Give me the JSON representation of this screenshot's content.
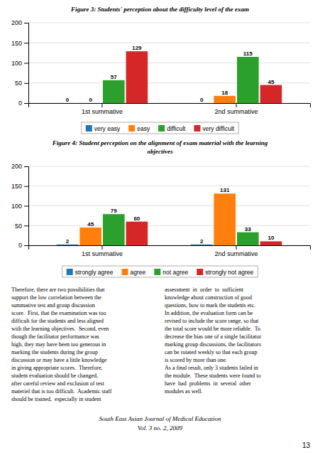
{
  "chart_data": [
    {
      "type": "bar",
      "title": "Figure 3: Students' perception about the difficulty level of the exam",
      "categories": [
        "1st summative",
        "2nd summative"
      ],
      "series": [
        {
          "name": "very easy",
          "values": [
            0,
            0
          ]
        },
        {
          "name": "easy",
          "values": [
            0,
            18
          ]
        },
        {
          "name": "difficult",
          "values": [
            57,
            115
          ]
        },
        {
          "name": "very difficult",
          "values": [
            129,
            45
          ]
        }
      ],
      "ylim": [
        0,
        200
      ],
      "yticks": [
        0,
        50,
        100,
        150,
        200
      ],
      "grid": true,
      "legend": "bottom",
      "data_labels": true
    },
    {
      "type": "bar",
      "title": "Figure 4: Student perception on the alignment of exam material with the learning\nobjectives",
      "categories": [
        "1st summative",
        "2nd summative"
      ],
      "series": [
        {
          "name": "strongly agree",
          "values": [
            2,
            2
          ]
        },
        {
          "name": "agree",
          "values": [
            45,
            131
          ]
        },
        {
          "name": "not agree",
          "values": [
            79,
            33
          ]
        },
        {
          "name": "strongly not agree",
          "values": [
            60,
            10
          ]
        }
      ],
      "ylim": [
        0,
        200
      ],
      "yticks": [
        0,
        50,
        100,
        150,
        200
      ],
      "grid": true,
      "legend": "bottom",
      "data_labels": true
    }
  ],
  "annotations": [
    "Therefore, there are two possibilities that\nsupport the low correlation between the\nsummative test and group discussion\nscore.  First, that the examination was too\ndifficult for the students and less aligned\nwith the learning objectives.  Second, even\nthough the facilitator performance was\nhigh, they may have been too generous in\nmarking the students during the group\ndiscussion or may have a little knowledge\nin giving appropriate scores.  Therefore,\nstudent evaluation should be changed,\nafter careful review and exclusion of test\nmateriel that is too difficult.  Academic staff\nshould be trained,  especially in student",
    "assessment  in  order  to  sufficient\nknowledge about construction of good\nquestions, how to mark the students etc.\nIn addition, the evaluation form can be\nrevised to include the score range, so that\nthe total score would be more reliable.  To\ndecrease the bias one of a single facilitator\nmarking group discussions, the facilitators\ncan be rotated weekly so that each group\nis scored by more than one.\n\nAs a final result, only 3 students failed in\nthe module.  These students were found to\nhave  had  problems  in  several  other\nmodules as well.",
    "South East Asian Journal of Medical Education\nVol. 3 no. 2, 2009",
    "13"
  ]
}
